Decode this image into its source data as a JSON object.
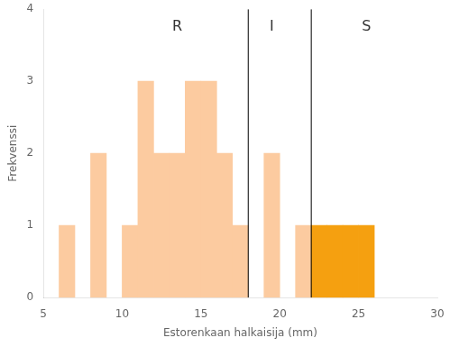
{
  "chart_data": {
    "type": "bar",
    "x": [
      6,
      8,
      10,
      11,
      12,
      13,
      14,
      15,
      16,
      17,
      19,
      21,
      22,
      23,
      24,
      25
    ],
    "values": [
      1,
      2,
      1,
      3,
      2,
      2,
      3,
      3,
      2,
      1,
      2,
      1,
      1,
      1,
      1,
      1
    ],
    "colors": [
      "#FCCBA0",
      "#FCCBA0",
      "#FCCBA0",
      "#FCCBA0",
      "#FCCBA0",
      "#FCCBA0",
      "#FCCBA0",
      "#FCCBA0",
      "#FCCBA0",
      "#FCCBA0",
      "#FCCBA0",
      "#FCCBA0",
      "#F5A010",
      "#F5A010",
      "#F5A010",
      "#F5A010"
    ],
    "xlabel": "Estorenkaan halkaisija (mm)",
    "ylabel": "Frekvenssi",
    "xlim": [
      5,
      30
    ],
    "ylim": [
      0,
      4
    ],
    "xticks": [
      5,
      10,
      15,
      20,
      25,
      30
    ],
    "yticks": [
      0,
      1,
      2,
      3,
      4
    ],
    "grid": false,
    "vlines": [
      18,
      22
    ],
    "annotations": [
      {
        "text": "R",
        "x": 13.5,
        "y": 3.85
      },
      {
        "text": "I",
        "x": 19.5,
        "y": 3.85
      },
      {
        "text": "S",
        "x": 25.5,
        "y": 3.85
      }
    ]
  }
}
